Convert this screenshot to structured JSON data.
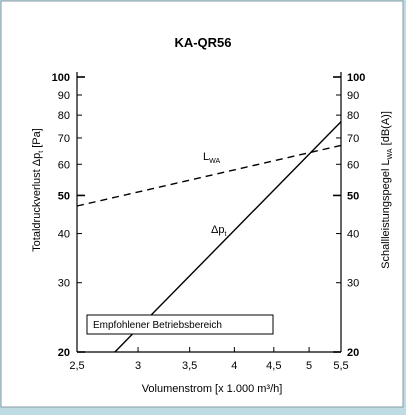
{
  "chart_data": {
    "type": "line",
    "title": "KA-QR56",
    "xlabel": "Volumenstrom [x 1.000 m³/h]",
    "ylabel_left": "Totaldruckverlust Δpₜ [Pa]",
    "ylabel_right": "Schallleistungspegel L_WA [dB(A)]",
    "xscale": "log",
    "yscale": "log",
    "xlim": [
      2.5,
      5.5
    ],
    "ylim": [
      20,
      100
    ],
    "x_ticks": [
      "2,5",
      "3",
      "3,5",
      "4",
      "4,5",
      "5",
      "5,5"
    ],
    "x_tick_values": [
      2.5,
      3,
      3.5,
      4,
      4.5,
      5,
      5.5
    ],
    "y_ticks_left": [
      "20",
      "30",
      "40",
      "50",
      "60",
      "70",
      "80",
      "90",
      "100"
    ],
    "y_ticks_right": [
      "20",
      "30",
      "40",
      "50",
      "60",
      "70",
      "80",
      "90",
      "100"
    ],
    "y_tick_values": [
      20,
      30,
      40,
      50,
      60,
      70,
      80,
      90,
      100
    ],
    "y_ticks_bold": [
      20,
      50,
      100
    ],
    "grid": false,
    "series": [
      {
        "name": "Δpₜ",
        "label_main": "Δp",
        "label_sub": "t",
        "style": "solid",
        "x": [
          2.8,
          5.5
        ],
        "y": [
          20,
          77
        ]
      },
      {
        "name": "L_WA",
        "label_main": "L",
        "label_sub": "WA",
        "style": "dashed",
        "x": [
          2.5,
          5.5
        ],
        "y": [
          47,
          67
        ]
      }
    ],
    "annotation": "Empfohlener Betriebsbereich",
    "background_color": "#bfdbe3",
    "line_color": "#000000"
  }
}
